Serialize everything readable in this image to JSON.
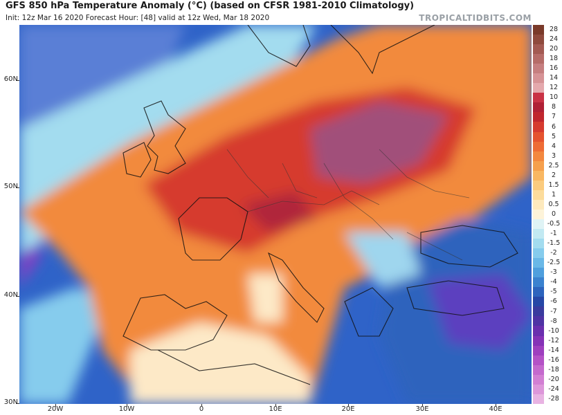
{
  "header": {
    "title": "GFS 850 hPa Temperature Anomaly (°C) (based on CFSR 1981-2010 Climatology)",
    "subtitle": "Init: 12z Mar 16 2020   Forecast Hour: [48]   valid at 12z Wed, Mar 18 2020",
    "credit": "TROPICALTIDBITS.COM"
  },
  "axes": {
    "lat_labels": [
      "60N",
      "50N",
      "40N",
      "30N"
    ],
    "lon_labels": [
      "20W",
      "10W",
      "0",
      "10E",
      "20E",
      "30E",
      "40E"
    ]
  },
  "colorbar": {
    "labels": [
      "28",
      "24",
      "20",
      "18",
      "16",
      "14",
      "12",
      "10",
      "8",
      "7",
      "6",
      "5",
      "4",
      "3",
      "2.5",
      "2",
      "1.5",
      "1",
      "0.5",
      "0",
      "-0.5",
      "-1",
      "-1.5",
      "-2",
      "-2.5",
      "-3",
      "-4",
      "-5",
      "-6",
      "-7",
      "-8",
      "-10",
      "-12",
      "-14",
      "-16",
      "-18",
      "-20",
      "-24",
      "-28"
    ],
    "colors": [
      "#7a3a2a",
      "#8f4a3d",
      "#a35a52",
      "#b66c68",
      "#c67f80",
      "#d69396",
      "#e4a9ad",
      "#c93245",
      "#b02035",
      "#c0262e",
      "#d63a2f",
      "#e5532f",
      "#ee6c35",
      "#f3883f",
      "#f6a04d",
      "#f9b762",
      "#fbcb7e",
      "#fcdc9c",
      "#fde9bd",
      "#fdf3d9",
      "#dff3f5",
      "#c2e9f2",
      "#a3dcef",
      "#86cced",
      "#6ab8e7",
      "#4f9fdd",
      "#3b82cf",
      "#2d64bd",
      "#2647a6",
      "#3a3b9e",
      "#4f33a4",
      "#6a2fae",
      "#8532b6",
      "#9e3fbe",
      "#b452c6",
      "#c469cd",
      "#d27fd3",
      "#dd97da",
      "#e8b3e2"
    ]
  },
  "map_colors": {
    "atlantic_blue": "#2f63c8",
    "cold_purple": "#5b3fbf",
    "cool_light": "#9fd6ee",
    "neutral": "#fde9c7",
    "warm": "#f28a3c",
    "hot": "#d63a2f",
    "very_hot": "#b0283a",
    "extreme": "#a14f7a"
  }
}
